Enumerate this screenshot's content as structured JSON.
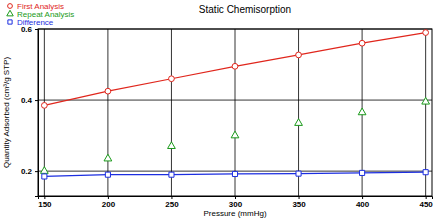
{
  "chart_data": {
    "type": "line",
    "title": "Static Chemisorption",
    "x_label": "Pressure (mmHg)",
    "y_label": "Quantity Adsorbed (cm³/g STP)",
    "x": [
      150,
      200,
      250,
      300,
      350,
      400,
      450
    ],
    "series": [
      {
        "name": "First Analysis",
        "color": "#e0261c",
        "marker": "circle",
        "line_style": "solid",
        "values": [
          0.385,
          0.425,
          0.46,
          0.495,
          0.527,
          0.56,
          0.59
        ]
      },
      {
        "name": "Repeat Analysis",
        "color": "#1a9a1a",
        "marker": "triangle",
        "line_style": "none",
        "values": [
          0.2,
          0.235,
          0.27,
          0.3,
          0.335,
          0.365,
          0.395
        ]
      },
      {
        "name": "Difference",
        "color": "#1c2ee0",
        "marker": "square",
        "line_style": "solid",
        "values": [
          0.185,
          0.19,
          0.19,
          0.192,
          0.193,
          0.195,
          0.197
        ]
      }
    ],
    "xlim": [
      145,
      455
    ],
    "xticks": [
      150,
      200,
      250,
      300,
      350,
      400,
      450
    ],
    "ylim": [
      0.13,
      0.6
    ],
    "yticks": [
      {
        "value": 0.2,
        "label": "0.2"
      },
      {
        "value": 0.4,
        "label": "0.4"
      },
      {
        "value": 0.6,
        "label": "0.6"
      }
    ],
    "grid": true,
    "legend": "top-left"
  }
}
